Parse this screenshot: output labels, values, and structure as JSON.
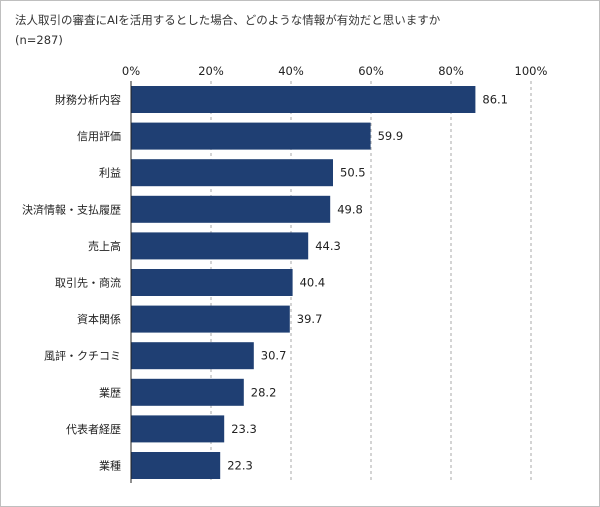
{
  "title": "法人取引の審査にAIを活用するとした場合、どのような情報が有効だと思いますか",
  "subtitle": "(n=287)",
  "colors": {
    "bar": "#1f3f73",
    "grid": "#aaaaaa",
    "axis": "#222222"
  },
  "chart_data": {
    "type": "bar",
    "orientation": "horizontal",
    "categories": [
      "財務分析内容",
      "信用評価",
      "利益",
      "決済情報・支払履歴",
      "売上高",
      "取引先・商流",
      "資本関係",
      "風評・クチコミ",
      "業歴",
      "代表者経歴",
      "業種"
    ],
    "values": [
      86.1,
      59.9,
      50.5,
      49.8,
      44.3,
      40.4,
      39.7,
      30.7,
      28.2,
      23.3,
      22.3
    ],
    "xlim": [
      0,
      100
    ],
    "ticks": [
      0,
      20,
      40,
      60,
      80,
      100
    ],
    "tick_labels": [
      "0%",
      "20%",
      "40%",
      "60%",
      "80%",
      "100%"
    ],
    "grid": true,
    "grid_style": "dashed-vertical"
  }
}
